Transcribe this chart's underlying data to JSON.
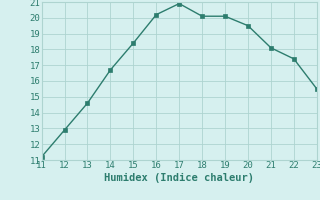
{
  "x": [
    11,
    12,
    13,
    14,
    15,
    16,
    17,
    18,
    19,
    20,
    21,
    22,
    23
  ],
  "y": [
    11.2,
    12.9,
    14.6,
    16.7,
    18.4,
    20.2,
    20.9,
    20.1,
    20.1,
    19.5,
    18.1,
    17.4,
    15.5
  ],
  "xlim": [
    11,
    23
  ],
  "ylim": [
    11,
    21
  ],
  "xticks": [
    11,
    12,
    13,
    14,
    15,
    16,
    17,
    18,
    19,
    20,
    21,
    22,
    23
  ],
  "yticks": [
    11,
    12,
    13,
    14,
    15,
    16,
    17,
    18,
    19,
    20,
    21
  ],
  "xlabel": "Humidex (Indice chaleur)",
  "line_color": "#2d7d6e",
  "bg_color": "#d6f0ef",
  "grid_color": "#aed4d0",
  "tick_color": "#2d7d6e",
  "label_color": "#2d7d6e",
  "marker": "s",
  "marker_size": 2.5,
  "linewidth": 1.0,
  "xlabel_fontsize": 7.5,
  "tick_fontsize": 6.5
}
